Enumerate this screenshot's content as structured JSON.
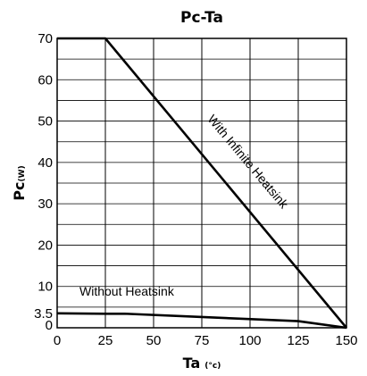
{
  "chart_data": {
    "type": "line",
    "title": "Pc-Ta",
    "xlabel": "Ta",
    "xunit": "(°c)",
    "ylabel": "Pc",
    "yunit": "(W)",
    "xlim": [
      0,
      150
    ],
    "ylim": [
      0,
      70
    ],
    "xticks": [
      0,
      25,
      50,
      75,
      100,
      125,
      150
    ],
    "yticks": [
      0,
      3.5,
      10,
      20,
      30,
      40,
      50,
      60,
      70
    ],
    "grid": true,
    "series": [
      {
        "name": "With Infinite Heatsink",
        "x": [
          0,
          25,
          150
        ],
        "y": [
          70,
          70,
          0
        ]
      },
      {
        "name": "Without Heatsink",
        "x": [
          0,
          25,
          35,
          75,
          125,
          150
        ],
        "y": [
          3.5,
          3.4,
          3.4,
          2.6,
          1.6,
          0
        ]
      }
    ],
    "annotations": [
      "With Infinite Heatsink",
      "Without Heatsink"
    ]
  }
}
